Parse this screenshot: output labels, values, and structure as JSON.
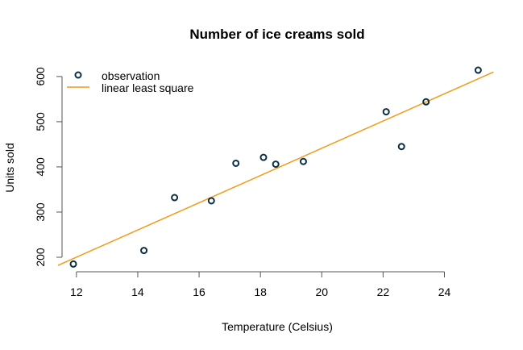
{
  "chart_data": {
    "type": "scatter",
    "title": "Number of ice creams sold",
    "xlabel": "Temperature (Celsius)",
    "ylabel": "Units sold",
    "xlim": [
      11.4,
      25.8
    ],
    "ylim": [
      175,
      623
    ],
    "xticks": [
      12,
      14,
      16,
      18,
      20,
      22,
      24
    ],
    "yticks": [
      200,
      300,
      400,
      500,
      600
    ],
    "grid": false,
    "legend_position": "top-left",
    "series": [
      {
        "name": "observation",
        "kind": "points",
        "color": "#0b2e45",
        "x": [
          11.9,
          14.2,
          15.2,
          16.4,
          17.2,
          18.1,
          18.5,
          19.4,
          22.1,
          22.6,
          23.4,
          25.1
        ],
        "y": [
          185,
          215,
          332,
          325,
          408,
          421,
          406,
          412,
          522,
          445,
          544,
          614
        ]
      },
      {
        "name": "linear least square",
        "kind": "line",
        "color": "#f29a1a",
        "x": [
          11.4,
          25.6
        ],
        "y": [
          182,
          610
        ]
      }
    ]
  }
}
